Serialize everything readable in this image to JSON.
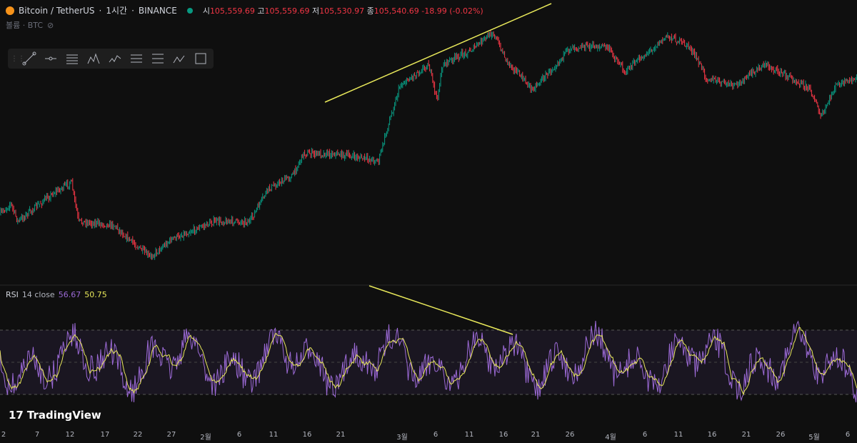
{
  "header": {
    "symbol": "Bitcoin / TetherUS",
    "interval": "1시간",
    "exchange": "BINANCE",
    "sep": "·",
    "open_label": "시",
    "open": "105,559.69",
    "high_label": "고",
    "high": "105,559.69",
    "low_label": "저",
    "low": "105,530.97",
    "close_label": "종",
    "close": "105,540.69",
    "change": "-18.99 (-0.02%)"
  },
  "volume": {
    "label": "볼륨 · BTC"
  },
  "toolbar": {
    "icons": [
      "trend-line",
      "horizontal-ray",
      "parallel-channel",
      "pattern",
      "elliott-wave",
      "fib-retracement",
      "fib-extension",
      "abcd-pattern",
      "rectangle"
    ]
  },
  "rsi": {
    "name": "RSI",
    "params": "14 close",
    "value": "56.67",
    "ma": "50.75"
  },
  "brand": "TradingView",
  "xaxis": [
    "2",
    "7",
    "12",
    "17",
    "22",
    "27",
    "2월",
    "6",
    "11",
    "16",
    "21",
    "3월",
    "6",
    "11",
    "16",
    "21",
    "26",
    "4월",
    "6",
    "11",
    "16",
    "21",
    "26",
    "5월",
    "6"
  ],
  "colors": {
    "up": "#089981",
    "down": "#f23645",
    "rsi": "#9c6ad6",
    "rsi_ma": "#e8e85a",
    "trendline": "#e8e85a"
  }
}
